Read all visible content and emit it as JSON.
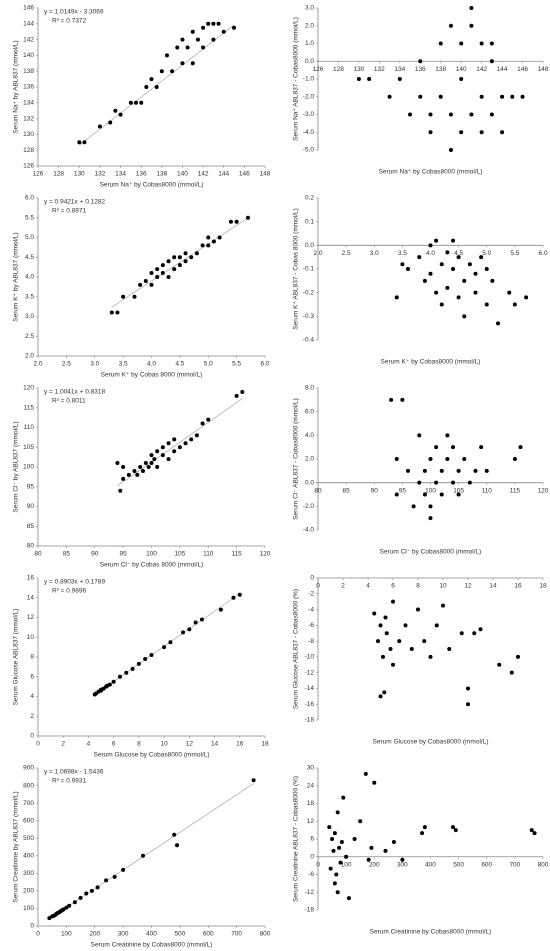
{
  "chart_data": [
    {
      "type": "scatter",
      "color": "#000000",
      "equation": "y = 1.0149x - 3.3069",
      "r2": "R² = 0.7372",
      "trendline": [
        1.0149,
        -3.3069
      ],
      "x_label": "Serum Na⁺ by Cobas8000 (mmol/L)",
      "y_label": "Serum Na⁺ by ABL837 (mmol/L)",
      "xlim": [
        126,
        148
      ],
      "xticks": [
        126,
        128,
        130,
        132,
        134,
        136,
        138,
        140,
        142,
        144,
        146,
        148
      ],
      "ylim": [
        126,
        146
      ],
      "yticks": [
        126,
        128,
        130,
        132,
        134,
        136,
        138,
        140,
        142,
        144,
        146
      ],
      "x": [
        130,
        130.5,
        132,
        133,
        133.5,
        134,
        135,
        135.5,
        136,
        136.5,
        137,
        137.5,
        138,
        138.5,
        139,
        139.5,
        140,
        140,
        140.5,
        141,
        141,
        141.5,
        142,
        142,
        142.5,
        143,
        143,
        143.5,
        144,
        145
      ],
      "y": [
        129,
        129,
        131,
        131.5,
        133,
        132.5,
        134,
        134,
        134,
        136,
        137,
        136,
        138,
        140,
        138,
        141,
        139,
        142,
        141,
        139,
        143,
        142,
        141,
        143.5,
        144,
        142,
        144,
        144,
        143,
        143.5
      ]
    },
    {
      "type": "scatter",
      "color": "#000000",
      "x_axis_crosses_zero": true,
      "x_label": "Serum Na⁺ by Cobas8000 (mmol/L)",
      "y_label": "Serum Na⁺ ABL837 - Cobas8000 (mmol/L)",
      "xlim": [
        126,
        148
      ],
      "xticks": [
        126,
        128,
        130,
        132,
        134,
        136,
        138,
        140,
        142,
        144,
        146,
        148
      ],
      "ylim": [
        -5,
        3
      ],
      "yticks": [
        {
          "value": -5,
          "label": "-5.0"
        },
        {
          "value": -4,
          "label": "-4.0"
        },
        {
          "value": -3,
          "label": "-3.0"
        },
        {
          "value": -2,
          "label": "-2.0"
        },
        {
          "value": -1,
          "label": "-1.0"
        },
        {
          "value": 0,
          "label": "0.0"
        },
        {
          "value": 1,
          "label": "1.0"
        },
        {
          "value": 2,
          "label": "2.0"
        },
        {
          "value": 3,
          "label": "3.0"
        }
      ],
      "x": [
        130,
        131,
        133,
        134,
        135,
        136,
        136,
        137,
        137,
        138,
        138,
        139,
        139,
        140,
        140,
        140,
        141,
        141,
        142,
        142,
        142,
        143,
        143,
        144,
        144,
        145,
        146,
        139,
        141,
        143
      ],
      "y": [
        -1,
        -1,
        -2,
        -1,
        -3,
        -2,
        0,
        -3,
        -4,
        1,
        -2,
        -3,
        2,
        -1,
        -4,
        1,
        2,
        -3,
        -2,
        1,
        -4,
        -3,
        0,
        -4,
        -2,
        -2,
        -2,
        -5,
        3,
        1
      ]
    },
    {
      "type": "scatter",
      "color": "#000000",
      "equation": "y = 0.9421x + 0.1282",
      "r2": "R² = 0.8971",
      "trendline": [
        0.9421,
        0.1282
      ],
      "x_label": "Serum K⁺ by Cobas 8000 (mmol/L)",
      "y_label": "Serum K⁺ by ABL837 (mmol/L)",
      "xlim": [
        2,
        6
      ],
      "xticks": [
        {
          "value": 2,
          "label": "2.0"
        },
        2.5,
        {
          "value": 3,
          "label": "3.0"
        },
        3.5,
        {
          "value": 4,
          "label": "4.0"
        },
        4.5,
        {
          "value": 5,
          "label": "5.0"
        },
        5.5,
        {
          "value": 6,
          "label": "6.0"
        }
      ],
      "ylim": [
        2,
        6
      ],
      "yticks": [
        {
          "value": 2,
          "label": "2.0"
        },
        2.5,
        {
          "value": 3,
          "label": "3.0"
        },
        3.5,
        {
          "value": 4,
          "label": "4.0"
        },
        4.5,
        {
          "value": 5,
          "label": "5.0"
        },
        5.5,
        {
          "value": 6,
          "label": "6.0"
        }
      ],
      "x": [
        3.3,
        3.4,
        3.5,
        3.7,
        3.8,
        3.9,
        4.0,
        4.0,
        4.1,
        4.1,
        4.2,
        4.2,
        4.3,
        4.3,
        4.4,
        4.4,
        4.5,
        4.5,
        4.6,
        4.6,
        4.7,
        4.8,
        4.9,
        5.0,
        5.0,
        5.1,
        5.2,
        5.4,
        5.5,
        5.7
      ],
      "y": [
        3.1,
        3.1,
        3.5,
        3.5,
        3.8,
        3.9,
        4.1,
        3.8,
        4.0,
        4.2,
        4.1,
        4.3,
        4.0,
        4.4,
        4.2,
        4.5,
        4.3,
        4.5,
        4.4,
        4.6,
        4.5,
        4.6,
        4.8,
        4.8,
        5.0,
        4.9,
        5.0,
        5.4,
        5.4,
        5.5
      ]
    },
    {
      "type": "scatter",
      "color": "#000000",
      "x_axis_crosses_zero": true,
      "x_label": "Serum K⁺ by Cobas8000 (mmol/L)",
      "y_label": "Serum K⁺ ABL837 - Cobas 8000 (mmol/L)",
      "xlim": [
        2,
        6
      ],
      "xticks": [
        {
          "value": 2,
          "label": "2.0"
        },
        2.5,
        {
          "value": 3,
          "label": "3.0"
        },
        3.5,
        {
          "value": 4,
          "label": "4.0"
        },
        4.5,
        {
          "value": 5,
          "label": "5.0"
        },
        5.5,
        {
          "value": 6,
          "label": "6.0"
        }
      ],
      "ylim": [
        -0.4,
        0.2
      ],
      "yticks": [
        -0.4,
        -0.3,
        -0.2,
        -0.1,
        {
          "value": 0,
          "label": "0.0"
        },
        0.1,
        0.2
      ],
      "x": [
        3.4,
        3.5,
        3.6,
        3.8,
        3.9,
        4.0,
        4.0,
        4.1,
        4.1,
        4.2,
        4.2,
        4.3,
        4.3,
        4.4,
        4.4,
        4.5,
        4.5,
        4.6,
        4.6,
        4.7,
        4.8,
        4.8,
        4.9,
        5.0,
        5.0,
        5.1,
        5.2,
        5.4,
        5.5,
        5.7
      ],
      "y": [
        -0.22,
        -0.08,
        -0.1,
        -0.05,
        -0.15,
        0.0,
        -0.12,
        0.02,
        -0.2,
        -0.08,
        -0.25,
        -0.03,
        -0.18,
        0.02,
        -0.1,
        -0.22,
        -0.05,
        -0.15,
        -0.3,
        -0.08,
        -0.2,
        -0.12,
        -0.05,
        -0.1,
        -0.25,
        -0.15,
        -0.33,
        -0.2,
        -0.25,
        -0.22
      ]
    },
    {
      "type": "scatter",
      "color": "#000000",
      "equation": "y = 1.0041x + 0.8318",
      "r2": "R² = 0.8011",
      "trendline": [
        1.0041,
        0.8318
      ],
      "x_label": "Serum Cl⁻ by Cobas 8000 (mmol/L)",
      "y_label": "Serum Cl⁻ by ABL837 (mmol/L)",
      "xlim": [
        80,
        120
      ],
      "xticks": [
        80,
        85,
        90,
        95,
        100,
        105,
        110,
        115,
        120
      ],
      "ylim": [
        80,
        120
      ],
      "yticks": [
        80,
        85,
        90,
        95,
        100,
        105,
        110,
        115,
        120
      ],
      "x": [
        94,
        94.5,
        95,
        96,
        97,
        97.5,
        98,
        98.5,
        99,
        99.5,
        100,
        100,
        100.5,
        101,
        101,
        102,
        102,
        103,
        103,
        104,
        104,
        105,
        106,
        107,
        108,
        109,
        110,
        115,
        116,
        95
      ],
      "y": [
        101,
        94,
        97,
        98,
        99,
        98,
        100,
        99,
        101,
        100,
        101,
        103,
        102,
        104,
        100,
        105,
        103,
        102,
        106,
        104,
        107,
        105,
        106,
        107,
        108,
        111,
        112,
        118,
        119,
        100
      ]
    },
    {
      "type": "scatter",
      "color": "#000000",
      "x_axis_crosses_zero": true,
      "x_label": "Serum Cl⁻ by Cobas8000 (mmol/L)",
      "y_label": "Serum Cl⁻ ABL837 - Cobas8000 (mmol/L)",
      "xlim": [
        80,
        120
      ],
      "xticks": [
        80,
        85,
        90,
        95,
        100,
        105,
        110,
        115,
        120
      ],
      "ylim": [
        -4,
        8
      ],
      "yticks": [
        {
          "value": -4,
          "label": "-4.0"
        },
        {
          "value": -2,
          "label": "-2.0"
        },
        {
          "value": 0,
          "label": "0.0"
        },
        {
          "value": 2,
          "label": "2.0"
        },
        {
          "value": 4,
          "label": "4.0"
        },
        {
          "value": 6,
          "label": "6.0"
        },
        {
          "value": 8,
          "label": "8.0"
        }
      ],
      "x": [
        93,
        94,
        94,
        95,
        96,
        97,
        98,
        98,
        99,
        99,
        100,
        100,
        101,
        101,
        102,
        102,
        103,
        103,
        104,
        104,
        105,
        105,
        106,
        107,
        108,
        109,
        110,
        115,
        116,
        100
      ],
      "y": [
        7,
        2,
        -1,
        7,
        1,
        -2,
        0,
        4,
        1,
        -1,
        2,
        -2,
        3,
        0,
        1,
        -1,
        4,
        2,
        0,
        3,
        -1,
        1,
        2,
        0,
        1,
        3,
        1,
        2,
        3,
        -3
      ]
    },
    {
      "type": "scatter",
      "color": "#000000",
      "equation": "y = 0.8903x + 0.1789",
      "r2": "R² = 0.9896",
      "trendline": [
        0.8903,
        0.1789
      ],
      "x_label": "Serum Glucose by Cobas8000 (mmol/L)",
      "y_label": "Serum Glucose ABL837 (mmol/L)",
      "xlim": [
        0,
        18
      ],
      "xticks": [
        0,
        2,
        4,
        6,
        8,
        10,
        12,
        14,
        16,
        18
      ],
      "ylim": [
        0,
        16
      ],
      "yticks": [
        0,
        2,
        4,
        6,
        8,
        10,
        12,
        14,
        16
      ],
      "x": [
        4.5,
        4.6,
        4.8,
        5.0,
        5.0,
        5.2,
        5.4,
        5.5,
        5.7,
        6.0,
        6.5,
        7.0,
        7.5,
        8.0,
        8.5,
        9.0,
        10.0,
        10.5,
        11.5,
        12.0,
        12.5,
        13.0,
        14.5,
        15.5,
        16.0
      ],
      "y": [
        4.2,
        4.3,
        4.5,
        4.6,
        4.7,
        4.8,
        5.0,
        5.1,
        5.2,
        5.5,
        6.0,
        6.4,
        6.8,
        7.3,
        7.8,
        8.2,
        9.0,
        9.5,
        10.5,
        10.8,
        11.5,
        11.8,
        12.8,
        14.0,
        14.3
      ]
    },
    {
      "type": "scatter",
      "color": "#000000",
      "x_axis_crosses_zero": true,
      "x_label": "Serum Glucose by Cobas8000 (mmol/L)",
      "y_label": "Serum Glucose ABL837 - Cobas8000 (%)",
      "xlim": [
        0,
        18
      ],
      "xticks": [
        0,
        2,
        4,
        6,
        8,
        10,
        12,
        14,
        16,
        18
      ],
      "ylim": [
        -18,
        0
      ],
      "yticks": [
        -18,
        -16,
        -14,
        -12,
        -10,
        -8,
        -6,
        -4,
        -2,
        0
      ],
      "x": [
        4.5,
        4.8,
        5.0,
        5.0,
        5.2,
        5.4,
        5.5,
        5.8,
        6.0,
        6.0,
        6.5,
        7.0,
        7.5,
        8.0,
        8.5,
        9.0,
        9.5,
        10.0,
        10.5,
        11.5,
        12.0,
        12.0,
        12.5,
        13.0,
        14.5,
        15.5,
        16.0,
        5.3
      ],
      "y": [
        -4.5,
        -8,
        -15,
        -6,
        -10,
        -5,
        -7,
        -9,
        -3,
        -11,
        -8,
        -6,
        -9,
        -4,
        -8,
        -10,
        -6,
        -3.5,
        -9,
        -7,
        -14,
        -16,
        -7,
        -6.5,
        -11,
        -12,
        -10,
        -14.5
      ]
    },
    {
      "type": "scatter",
      "color": "#000000",
      "equation": "y = 1.0698x - 1.5436",
      "r2": "R² = 0.9931",
      "trendline": [
        1.0698,
        -1.5436
      ],
      "x_label": "Serum Creatinine by Cobas8000 (mmol/L)",
      "y_label": "Serum Creatinine by ABL837 (mmol/L)",
      "xlim": [
        0,
        800
      ],
      "xticks": [
        0,
        100,
        200,
        300,
        400,
        500,
        600,
        700,
        800
      ],
      "ylim": [
        0,
        900
      ],
      "yticks": [
        0,
        100,
        200,
        300,
        400,
        500,
        600,
        700,
        800,
        900
      ],
      "x": [
        40,
        50,
        55,
        60,
        65,
        70,
        75,
        80,
        85,
        90,
        100,
        110,
        130,
        150,
        170,
        190,
        210,
        240,
        270,
        300,
        370,
        480,
        490,
        760
      ],
      "y": [
        45,
        55,
        58,
        62,
        70,
        75,
        78,
        85,
        90,
        95,
        105,
        115,
        135,
        160,
        185,
        200,
        220,
        260,
        280,
        320,
        400,
        520,
        460,
        830
      ]
    },
    {
      "type": "scatter",
      "color": "#000000",
      "x_axis_crosses_zero": true,
      "x_label": "Serum Creatinine by Cobas8000 (mmol/L)",
      "y_label": "Serum Creatinine ABL837 - Cobas8000 (%)",
      "xlim": [
        0,
        800
      ],
      "xticks": [
        0,
        100,
        200,
        300,
        400,
        500,
        600,
        700,
        800
      ],
      "ylim": [
        -18,
        30
      ],
      "yticks": [
        -18,
        -12,
        -6,
        0,
        6,
        12,
        18,
        24,
        30
      ],
      "x": [
        40,
        45,
        50,
        55,
        60,
        65,
        70,
        75,
        80,
        85,
        90,
        100,
        110,
        130,
        150,
        170,
        190,
        200,
        240,
        270,
        300,
        370,
        380,
        480,
        490,
        760,
        770,
        60,
        70,
        180
      ],
      "y": [
        10,
        -4,
        6,
        2,
        8,
        -6,
        15,
        3,
        -2,
        5,
        20,
        0,
        -14,
        6,
        12,
        28,
        3,
        25,
        2,
        5,
        -1,
        8,
        10,
        10,
        9,
        9,
        8,
        -9,
        -12,
        -1
      ]
    }
  ]
}
